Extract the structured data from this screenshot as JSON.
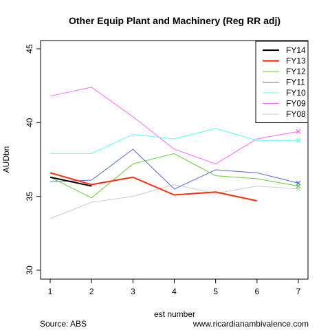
{
  "chart_data": {
    "type": "line",
    "title": "Other Equip Plant and Machinery (Reg RR adj)",
    "xlabel": "est number",
    "ylabel": "AUDbn",
    "x": [
      1,
      2,
      3,
      4,
      5,
      6,
      7
    ],
    "xlim": [
      1,
      7
    ],
    "ylim": [
      30,
      45
    ],
    "yticks": [
      30,
      35,
      40,
      45
    ],
    "xticks": [
      1,
      2,
      3,
      4,
      5,
      6,
      7
    ],
    "grid": false,
    "legend_position": "top-right",
    "series": [
      {
        "name": "FY14",
        "color": "#000000",
        "values": [
          36.3,
          35.7,
          null,
          null,
          null,
          null,
          null
        ],
        "end_marker": false,
        "bold": true
      },
      {
        "name": "FY13",
        "color": "#ff2b0a",
        "values": [
          36.6,
          35.8,
          36.3,
          35.1,
          35.3,
          34.7,
          null
        ],
        "end_marker": false,
        "bold": true
      },
      {
        "name": "FY12",
        "color": "#66cc33",
        "values": [
          36.3,
          34.9,
          37.2,
          37.9,
          36.4,
          36.2,
          35.7
        ],
        "end_marker": true
      },
      {
        "name": "FY11",
        "color": "#5566dd",
        "values": [
          36.0,
          36.1,
          38.2,
          35.5,
          36.8,
          36.6,
          35.9
        ],
        "end_marker": true
      },
      {
        "name": "FY10",
        "color": "#55ffff",
        "values": [
          37.9,
          37.9,
          39.2,
          38.9,
          39.6,
          38.8,
          38.8
        ],
        "end_marker": true
      },
      {
        "name": "FY09",
        "color": "#ff66ff",
        "values": [
          41.8,
          42.4,
          40.4,
          38.2,
          37.2,
          38.9,
          39.4
        ],
        "end_marker": true
      },
      {
        "name": "FY08",
        "color": "#cccccc",
        "values": [
          33.5,
          34.6,
          35.0,
          35.8,
          35.2,
          35.7,
          35.5
        ],
        "end_marker": true
      }
    ]
  },
  "footer": {
    "source": "Source: ABS",
    "website": "www.ricardianambivalence.com"
  }
}
